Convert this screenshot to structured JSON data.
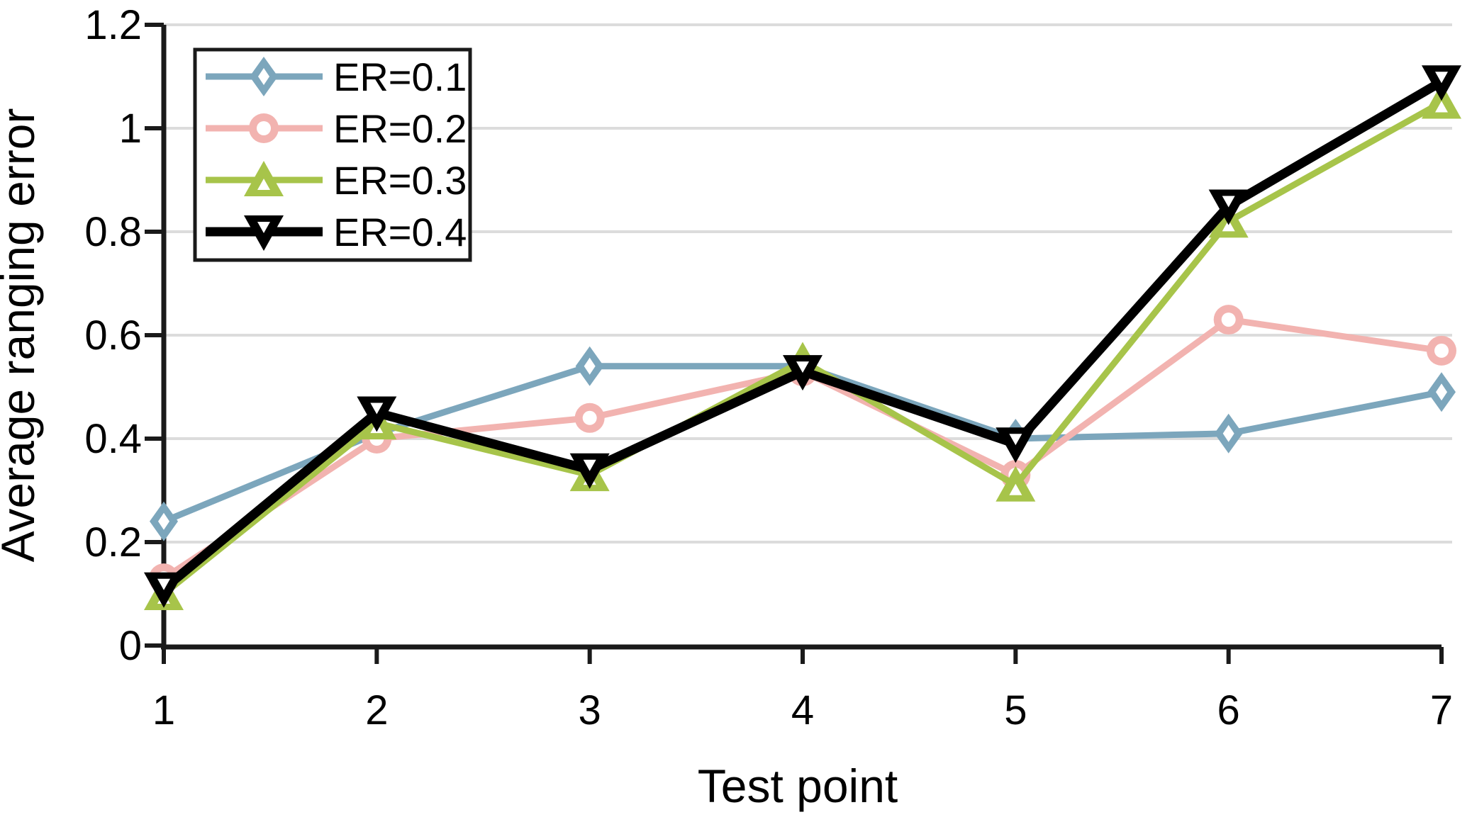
{
  "chart_data": {
    "type": "line",
    "title": "",
    "xlabel": "Test point",
    "ylabel": "Average ranging error",
    "x": [
      1,
      2,
      3,
      4,
      5,
      6,
      7
    ],
    "xtick_labels": [
      "1",
      "2",
      "3",
      "4",
      "5",
      "6",
      "7"
    ],
    "ylim": [
      0,
      1.2
    ],
    "ytick_values": [
      0,
      0.2,
      0.4,
      0.6,
      0.8,
      1,
      1.2
    ],
    "ytick_labels": [
      "0",
      "0.2",
      "0.4",
      "0.6",
      "0.8",
      "1",
      "1.2"
    ],
    "grid": "horizontal",
    "grid_color": "#dcdcdc",
    "axis_color": "#1a1a1a",
    "legend_position": "top-left",
    "series": [
      {
        "name": "ER=0.1",
        "color": "#7ca6bc",
        "marker": "diamond",
        "line_width": 9,
        "values": [
          0.24,
          0.41,
          0.54,
          0.54,
          0.4,
          0.41,
          0.49
        ]
      },
      {
        "name": "ER=0.2",
        "color": "#f2b3b0",
        "marker": "circle",
        "line_width": 9,
        "values": [
          0.13,
          0.4,
          0.44,
          0.53,
          0.33,
          0.63,
          0.57
        ]
      },
      {
        "name": "ER=0.3",
        "color": "#a7c44a",
        "marker": "triangle-up",
        "line_width": 9,
        "values": [
          0.1,
          0.43,
          0.33,
          0.55,
          0.31,
          0.82,
          1.05
        ]
      },
      {
        "name": "ER=0.4",
        "color": "#000000",
        "marker": "triangle-down",
        "line_width": 13,
        "values": [
          0.11,
          0.45,
          0.34,
          0.53,
          0.39,
          0.85,
          1.09
        ]
      }
    ]
  }
}
